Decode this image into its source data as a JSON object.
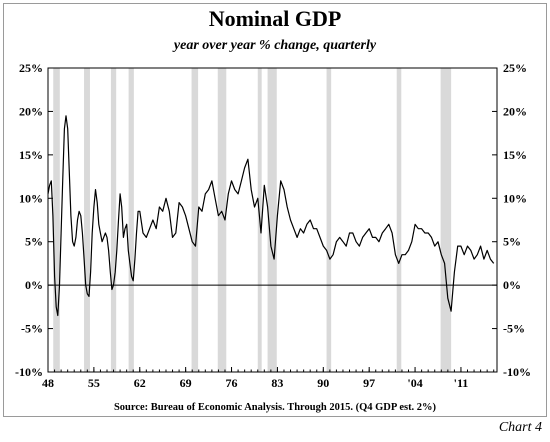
{
  "chart_data": {
    "type": "line",
    "title": "Nominal GDP",
    "subtitle": "year over year % change, quarterly",
    "source": "Source:  Bureau of Economic Analysis. Through 2015. (Q4 GDP est. 2%)",
    "chart_label": "Chart 4",
    "xlim": [
      1948,
      2016.5
    ],
    "ylim": [
      -10,
      25
    ],
    "x_ticks": [
      {
        "value": 1948,
        "label": "48"
      },
      {
        "value": 1955,
        "label": "55"
      },
      {
        "value": 1962,
        "label": "62"
      },
      {
        "value": 1969,
        "label": "69"
      },
      {
        "value": 1976,
        "label": "76"
      },
      {
        "value": 1983,
        "label": "83"
      },
      {
        "value": 1990,
        "label": "90"
      },
      {
        "value": 1997,
        "label": "97"
      },
      {
        "value": 2004,
        "label": "'04"
      },
      {
        "value": 2011,
        "label": "'11"
      }
    ],
    "y_ticks": [
      {
        "value": 25,
        "label": "25%"
      },
      {
        "value": 20,
        "label": "20%"
      },
      {
        "value": 15,
        "label": "15%"
      },
      {
        "value": 10,
        "label": "10%"
      },
      {
        "value": 5,
        "label": "5%"
      },
      {
        "value": 0,
        "label": "0%"
      },
      {
        "value": -5,
        "label": "-5%"
      },
      {
        "value": -10,
        "label": "-10%"
      }
    ],
    "recessions": [
      [
        1948.8,
        1949.8
      ],
      [
        1953.5,
        1954.4
      ],
      [
        1957.6,
        1958.4
      ],
      [
        1960.3,
        1961.1
      ],
      [
        1969.9,
        1970.9
      ],
      [
        1973.9,
        1975.2
      ],
      [
        1980.0,
        1980.6
      ],
      [
        1981.5,
        1982.9
      ],
      [
        1990.5,
        1991.2
      ],
      [
        2001.2,
        2001.9
      ],
      [
        2007.9,
        2009.5
      ]
    ],
    "series": [
      {
        "x": [
          1948.0,
          1948.25,
          1948.5,
          1948.75,
          1949.0,
          1949.25,
          1949.5,
          1949.75,
          1950.0,
          1950.25,
          1950.5,
          1950.75,
          1951.0,
          1951.25,
          1951.5,
          1951.75,
          1952.0,
          1952.25,
          1952.5,
          1952.75,
          1953.0,
          1953.25,
          1953.5,
          1953.75,
          1954.0,
          1954.25,
          1954.5,
          1954.75,
          1955.0,
          1955.25,
          1955.5,
          1955.75,
          1956.0,
          1956.25,
          1956.5,
          1956.75,
          1957.0,
          1957.25,
          1957.5,
          1957.75,
          1958.0,
          1958.25,
          1958.5,
          1958.75,
          1959.0,
          1959.25,
          1959.5,
          1959.75,
          1960.0,
          1960.25,
          1960.5,
          1960.75,
          1961.0,
          1961.25,
          1961.5,
          1961.75,
          1962.0,
          1962.5,
          1963.0,
          1963.5,
          1964.0,
          1964.5,
          1965.0,
          1965.5,
          1966.0,
          1966.5,
          1967.0,
          1967.5,
          1968.0,
          1968.5,
          1969.0,
          1969.5,
          1970.0,
          1970.5,
          1971.0,
          1971.5,
          1972.0,
          1972.5,
          1973.0,
          1973.5,
          1974.0,
          1974.5,
          1975.0,
          1975.5,
          1976.0,
          1976.5,
          1977.0,
          1977.5,
          1978.0,
          1978.5,
          1979.0,
          1979.5,
          1980.0,
          1980.5,
          1981.0,
          1981.5,
          1982.0,
          1982.5,
          1983.0,
          1983.5,
          1984.0,
          1984.5,
          1985.0,
          1985.5,
          1986.0,
          1986.5,
          1987.0,
          1987.5,
          1988.0,
          1988.5,
          1989.0,
          1989.5,
          1990.0,
          1990.5,
          1991.0,
          1991.5,
          1992.0,
          1992.5,
          1993.0,
          1993.5,
          1994.0,
          1994.5,
          1995.0,
          1995.5,
          1996.0,
          1996.5,
          1997.0,
          1997.5,
          1998.0,
          1998.5,
          1999.0,
          1999.5,
          2000.0,
          2000.5,
          2001.0,
          2001.5,
          2002.0,
          2002.5,
          2003.0,
          2003.5,
          2004.0,
          2004.5,
          2005.0,
          2005.5,
          2006.0,
          2006.5,
          2007.0,
          2007.5,
          2008.0,
          2008.5,
          2009.0,
          2009.5,
          2010.0,
          2010.5,
          2011.0,
          2011.5,
          2012.0,
          2012.5,
          2013.0,
          2013.5,
          2014.0,
          2014.5,
          2015.0,
          2015.5,
          2016.0
        ],
        "y": [
          10.5,
          11.5,
          12.0,
          8.0,
          1.0,
          -2.5,
          -3.5,
          0.0,
          6.0,
          12.0,
          18.0,
          19.5,
          18.0,
          13.0,
          8.0,
          5.0,
          4.5,
          5.5,
          7.5,
          8.5,
          8.0,
          6.0,
          3.0,
          0.0,
          -1.0,
          -1.3,
          1.5,
          6.0,
          9.0,
          11.0,
          9.5,
          7.0,
          6.0,
          5.0,
          5.5,
          6.0,
          5.5,
          4.0,
          1.5,
          -0.5,
          0.0,
          1.5,
          4.0,
          7.5,
          10.5,
          9.0,
          5.5,
          6.5,
          7.0,
          4.0,
          2.5,
          1.0,
          0.5,
          3.0,
          6.0,
          8.5,
          8.5,
          6.0,
          5.5,
          6.5,
          7.5,
          6.5,
          9.0,
          8.5,
          10.0,
          8.5,
          5.5,
          6.0,
          9.5,
          9.0,
          8.0,
          6.5,
          5.0,
          4.5,
          9.0,
          8.5,
          10.5,
          11.0,
          12.0,
          10.0,
          8.0,
          8.5,
          7.5,
          10.5,
          12.0,
          11.0,
          10.5,
          12.0,
          13.5,
          14.5,
          11.0,
          9.0,
          10.0,
          6.0,
          11.5,
          9.0,
          4.5,
          3.0,
          8.0,
          12.0,
          11.0,
          9.0,
          7.5,
          6.5,
          5.5,
          6.5,
          6.0,
          7.0,
          7.5,
          6.5,
          6.5,
          5.5,
          4.5,
          4.0,
          3.0,
          3.5,
          5.0,
          5.5,
          5.0,
          4.5,
          6.0,
          6.0,
          5.0,
          4.5,
          5.5,
          6.0,
          6.5,
          5.5,
          5.5,
          5.0,
          6.0,
          6.5,
          7.0,
          6.0,
          3.5,
          2.5,
          3.5,
          3.5,
          4.0,
          5.0,
          7.0,
          6.5,
          6.5,
          6.0,
          6.0,
          5.5,
          4.5,
          5.0,
          3.5,
          2.5,
          -1.5,
          -3.0,
          1.5,
          4.5,
          4.5,
          3.5,
          4.5,
          4.0,
          3.0,
          3.5,
          4.5,
          3.0,
          4.0,
          3.0,
          2.5
        ]
      }
    ]
  }
}
